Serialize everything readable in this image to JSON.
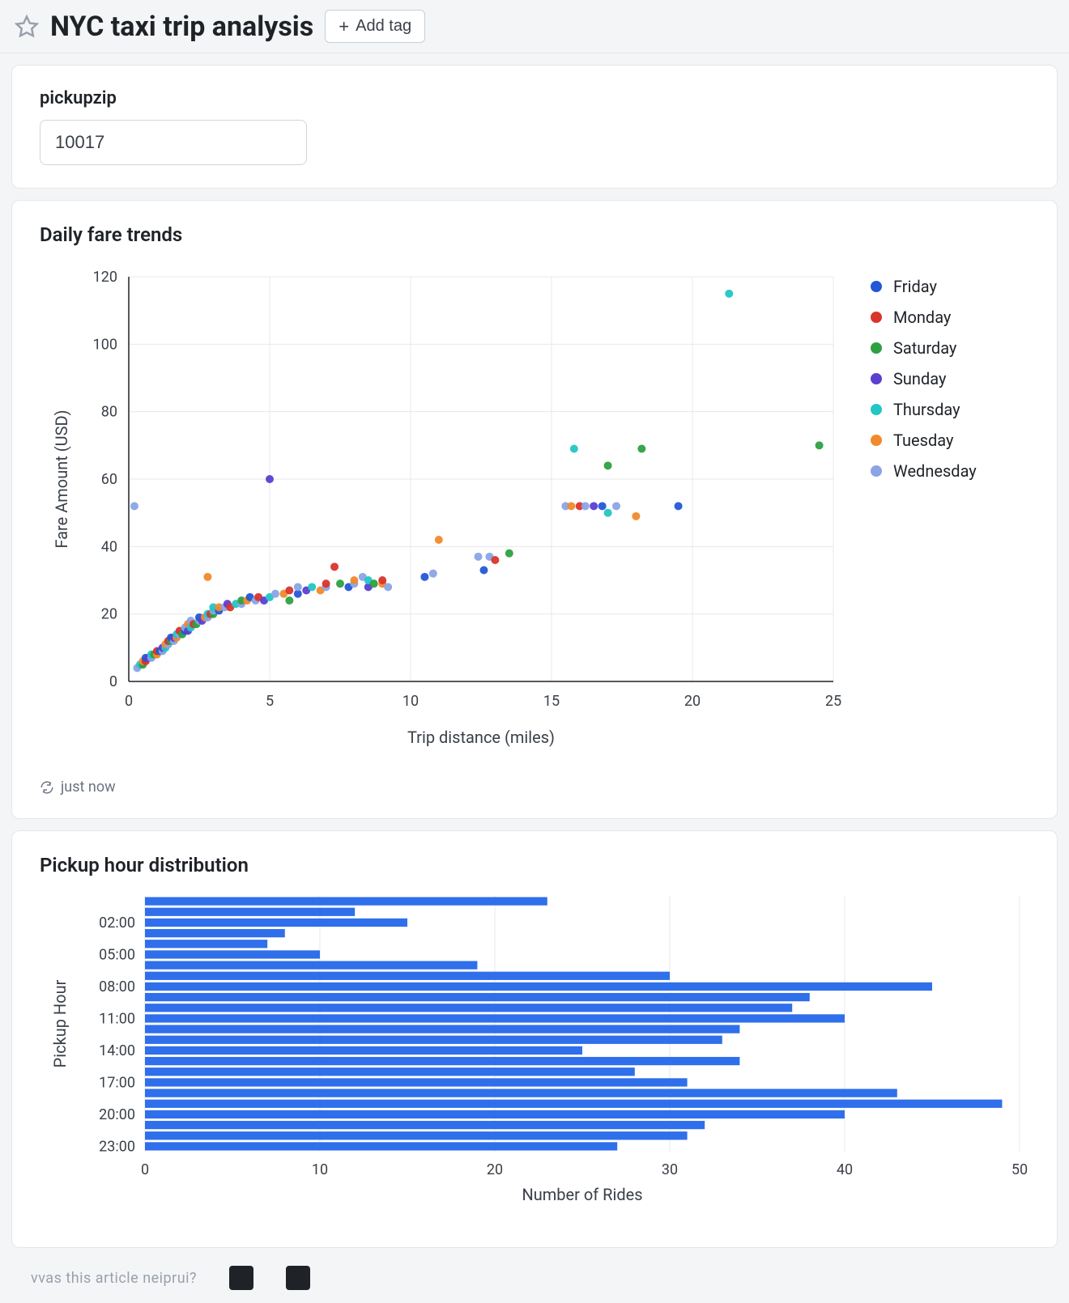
{
  "header": {
    "title": "NYC taxi trip analysis",
    "add_tag_label": "Add tag"
  },
  "param": {
    "label": "pickupzip",
    "value": "10017"
  },
  "scatter": {
    "title": "Daily fare trends",
    "type": "scatter",
    "xlabel": "Trip distance (miles)",
    "ylabel": "Fare Amount (USD)",
    "xlim": [
      0,
      25
    ],
    "ylim": [
      0,
      120
    ],
    "xtick_step": 5,
    "ytick_step": 20,
    "plot_background": "#ffffff",
    "grid_color": "#e6e8ec",
    "axis_color": "#1f2328",
    "marker_radius": 5,
    "legend": [
      {
        "label": "Friday",
        "color": "#2457d6"
      },
      {
        "label": "Monday",
        "color": "#d9352a"
      },
      {
        "label": "Saturday",
        "color": "#2ea043"
      },
      {
        "label": "Sunday",
        "color": "#5b3fd1"
      },
      {
        "label": "Thursday",
        "color": "#22c6c6"
      },
      {
        "label": "Tuesday",
        "color": "#f08a2c"
      },
      {
        "label": "Wednesday",
        "color": "#8aa4e6"
      }
    ],
    "refresh_text": "just now",
    "points": [
      {
        "x": 0.3,
        "y": 4,
        "c": "#8aa4e6"
      },
      {
        "x": 0.4,
        "y": 5,
        "c": "#22c6c6"
      },
      {
        "x": 0.5,
        "y": 5,
        "c": "#2ea043"
      },
      {
        "x": 0.5,
        "y": 6,
        "c": "#f08a2c"
      },
      {
        "x": 0.6,
        "y": 6,
        "c": "#d9352a"
      },
      {
        "x": 0.6,
        "y": 7,
        "c": "#2457d6"
      },
      {
        "x": 0.7,
        "y": 7,
        "c": "#5b3fd1"
      },
      {
        "x": 0.8,
        "y": 7,
        "c": "#8aa4e6"
      },
      {
        "x": 0.8,
        "y": 8,
        "c": "#22c6c6"
      },
      {
        "x": 0.9,
        "y": 8,
        "c": "#2ea043"
      },
      {
        "x": 1.0,
        "y": 8,
        "c": "#f08a2c"
      },
      {
        "x": 1.0,
        "y": 9,
        "c": "#d9352a"
      },
      {
        "x": 1.1,
        "y": 9,
        "c": "#2457d6"
      },
      {
        "x": 1.2,
        "y": 9,
        "c": "#8aa4e6"
      },
      {
        "x": 1.2,
        "y": 10,
        "c": "#5b3fd1"
      },
      {
        "x": 1.3,
        "y": 10,
        "c": "#22c6c6"
      },
      {
        "x": 1.3,
        "y": 11,
        "c": "#f08a2c"
      },
      {
        "x": 1.4,
        "y": 11,
        "c": "#8aa4e6"
      },
      {
        "x": 1.4,
        "y": 12,
        "c": "#d9352a"
      },
      {
        "x": 1.5,
        "y": 12,
        "c": "#2ea043"
      },
      {
        "x": 1.5,
        "y": 13,
        "c": "#2457d6"
      },
      {
        "x": 1.6,
        "y": 12,
        "c": "#8aa4e6"
      },
      {
        "x": 1.6,
        "y": 13,
        "c": "#5b3fd1"
      },
      {
        "x": 1.7,
        "y": 13,
        "c": "#f08a2c"
      },
      {
        "x": 1.7,
        "y": 14,
        "c": "#22c6c6"
      },
      {
        "x": 1.8,
        "y": 14,
        "c": "#8aa4e6"
      },
      {
        "x": 1.8,
        "y": 15,
        "c": "#d9352a"
      },
      {
        "x": 1.9,
        "y": 14,
        "c": "#2ea043"
      },
      {
        "x": 2.0,
        "y": 15,
        "c": "#2457d6"
      },
      {
        "x": 2.0,
        "y": 16,
        "c": "#8aa4e6"
      },
      {
        "x": 2.1,
        "y": 15,
        "c": "#5b3fd1"
      },
      {
        "x": 2.1,
        "y": 17,
        "c": "#f08a2c"
      },
      {
        "x": 2.2,
        "y": 16,
        "c": "#22c6c6"
      },
      {
        "x": 2.2,
        "y": 18,
        "c": "#8aa4e6"
      },
      {
        "x": 2.3,
        "y": 17,
        "c": "#d9352a"
      },
      {
        "x": 2.4,
        "y": 17,
        "c": "#2ea043"
      },
      {
        "x": 2.5,
        "y": 18,
        "c": "#8aa4e6"
      },
      {
        "x": 2.5,
        "y": 19,
        "c": "#2457d6"
      },
      {
        "x": 2.6,
        "y": 18,
        "c": "#5b3fd1"
      },
      {
        "x": 2.7,
        "y": 19,
        "c": "#f08a2c"
      },
      {
        "x": 2.8,
        "y": 19,
        "c": "#8aa4e6"
      },
      {
        "x": 2.8,
        "y": 20,
        "c": "#22c6c6"
      },
      {
        "x": 2.8,
        "y": 31,
        "c": "#f08a2c"
      },
      {
        "x": 2.9,
        "y": 20,
        "c": "#d9352a"
      },
      {
        "x": 3.0,
        "y": 20,
        "c": "#2ea043"
      },
      {
        "x": 3.0,
        "y": 21,
        "c": "#8aa4e6"
      },
      {
        "x": 3.0,
        "y": 22,
        "c": "#22c6c6"
      },
      {
        "x": 3.2,
        "y": 21,
        "c": "#2457d6"
      },
      {
        "x": 3.2,
        "y": 22,
        "c": "#f08a2c"
      },
      {
        "x": 3.4,
        "y": 22,
        "c": "#8aa4e6"
      },
      {
        "x": 3.5,
        "y": 23,
        "c": "#5b3fd1"
      },
      {
        "x": 3.6,
        "y": 22,
        "c": "#d9352a"
      },
      {
        "x": 3.8,
        "y": 23,
        "c": "#22c6c6"
      },
      {
        "x": 4.0,
        "y": 23,
        "c": "#8aa4e6"
      },
      {
        "x": 4.0,
        "y": 24,
        "c": "#2ea043"
      },
      {
        "x": 4.2,
        "y": 24,
        "c": "#f08a2c"
      },
      {
        "x": 4.3,
        "y": 25,
        "c": "#2457d6"
      },
      {
        "x": 4.5,
        "y": 24,
        "c": "#8aa4e6"
      },
      {
        "x": 4.6,
        "y": 25,
        "c": "#d9352a"
      },
      {
        "x": 4.8,
        "y": 24,
        "c": "#5b3fd1"
      },
      {
        "x": 5.0,
        "y": 25,
        "c": "#22c6c6"
      },
      {
        "x": 5.0,
        "y": 60,
        "c": "#5b3fd1"
      },
      {
        "x": 5.2,
        "y": 26,
        "c": "#8aa4e6"
      },
      {
        "x": 5.5,
        "y": 26,
        "c": "#f08a2c"
      },
      {
        "x": 5.7,
        "y": 24,
        "c": "#2ea043"
      },
      {
        "x": 5.7,
        "y": 27,
        "c": "#d9352a"
      },
      {
        "x": 6.0,
        "y": 26,
        "c": "#2457d6"
      },
      {
        "x": 6.0,
        "y": 28,
        "c": "#8aa4e6"
      },
      {
        "x": 6.3,
        "y": 27,
        "c": "#5b3fd1"
      },
      {
        "x": 6.5,
        "y": 28,
        "c": "#22c6c6"
      },
      {
        "x": 6.8,
        "y": 27,
        "c": "#f08a2c"
      },
      {
        "x": 7.0,
        "y": 28,
        "c": "#8aa4e6"
      },
      {
        "x": 7.0,
        "y": 29,
        "c": "#d9352a"
      },
      {
        "x": 7.3,
        "y": 34,
        "c": "#d9352a"
      },
      {
        "x": 7.5,
        "y": 29,
        "c": "#2ea043"
      },
      {
        "x": 7.8,
        "y": 28,
        "c": "#2457d6"
      },
      {
        "x": 8.0,
        "y": 29,
        "c": "#8aa4e6"
      },
      {
        "x": 8.0,
        "y": 30,
        "c": "#f08a2c"
      },
      {
        "x": 8.3,
        "y": 31,
        "c": "#8aa4e6"
      },
      {
        "x": 8.5,
        "y": 28,
        "c": "#5b3fd1"
      },
      {
        "x": 8.5,
        "y": 30,
        "c": "#22c6c6"
      },
      {
        "x": 8.7,
        "y": 29,
        "c": "#2ea043"
      },
      {
        "x": 9.0,
        "y": 29,
        "c": "#f08a2c"
      },
      {
        "x": 9.0,
        "y": 30,
        "c": "#d9352a"
      },
      {
        "x": 9.2,
        "y": 28,
        "c": "#8aa4e6"
      },
      {
        "x": 10.5,
        "y": 31,
        "c": "#2457d6"
      },
      {
        "x": 10.8,
        "y": 32,
        "c": "#8aa4e6"
      },
      {
        "x": 11.0,
        "y": 42,
        "c": "#f08a2c"
      },
      {
        "x": 12.4,
        "y": 37,
        "c": "#8aa4e6"
      },
      {
        "x": 12.6,
        "y": 33,
        "c": "#2457d6"
      },
      {
        "x": 12.8,
        "y": 37,
        "c": "#8aa4e6"
      },
      {
        "x": 13.0,
        "y": 36,
        "c": "#d9352a"
      },
      {
        "x": 13.5,
        "y": 38,
        "c": "#2ea043"
      },
      {
        "x": 15.5,
        "y": 52,
        "c": "#8aa4e6"
      },
      {
        "x": 15.7,
        "y": 52,
        "c": "#f08a2c"
      },
      {
        "x": 15.8,
        "y": 69,
        "c": "#22c6c6"
      },
      {
        "x": 16.0,
        "y": 52,
        "c": "#d9352a"
      },
      {
        "x": 16.2,
        "y": 52,
        "c": "#8aa4e6"
      },
      {
        "x": 16.5,
        "y": 52,
        "c": "#5b3fd1"
      },
      {
        "x": 16.8,
        "y": 52,
        "c": "#2457d6"
      },
      {
        "x": 17.0,
        "y": 50,
        "c": "#22c6c6"
      },
      {
        "x": 17.0,
        "y": 64,
        "c": "#2ea043"
      },
      {
        "x": 17.3,
        "y": 52,
        "c": "#8aa4e6"
      },
      {
        "x": 18.0,
        "y": 49,
        "c": "#f08a2c"
      },
      {
        "x": 18.2,
        "y": 69,
        "c": "#2ea043"
      },
      {
        "x": 19.5,
        "y": 52,
        "c": "#2457d6"
      },
      {
        "x": 21.3,
        "y": 115,
        "c": "#22c6c6"
      },
      {
        "x": 24.5,
        "y": 70,
        "c": "#2ea043"
      },
      {
        "x": 0.2,
        "y": 52,
        "c": "#8aa4e6"
      }
    ]
  },
  "barchart": {
    "title": "Pickup hour distribution",
    "type": "bar-horizontal",
    "xlabel": "Number of Rides",
    "ylabel": "Pickup Hour",
    "xlim": [
      0,
      50
    ],
    "xtick_step": 10,
    "bar_color": "#2f6feb",
    "background_color": "#ffffff",
    "grid_color": "#e6e8ec",
    "categories": [
      "00:00",
      "01:00",
      "02:00",
      "03:00",
      "04:00",
      "05:00",
      "06:00",
      "07:00",
      "08:00",
      "09:00",
      "10:00",
      "11:00",
      "12:00",
      "13:00",
      "14:00",
      "15:00",
      "16:00",
      "17:00",
      "18:00",
      "19:00",
      "20:00",
      "21:00",
      "22:00",
      "23:00"
    ],
    "values": [
      23,
      12,
      15,
      8,
      7,
      10,
      19,
      30,
      45,
      38,
      37,
      40,
      34,
      33,
      25,
      34,
      28,
      31,
      43,
      49,
      40,
      32,
      31,
      27
    ],
    "ytick_labels": [
      "02:00",
      "05:00",
      "08:00",
      "11:00",
      "14:00",
      "17:00",
      "20:00",
      "23:00"
    ],
    "ytick_indices": [
      2,
      5,
      8,
      11,
      14,
      17,
      20,
      23
    ]
  },
  "footer_fragment_text": "vvas this article neiprui?"
}
